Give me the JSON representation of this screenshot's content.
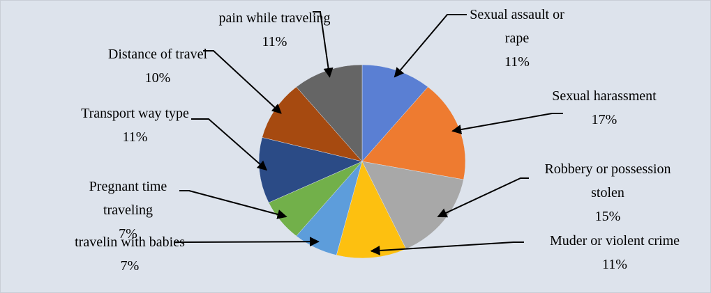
{
  "chart_data": {
    "type": "pie",
    "categories": [
      "Sexual assault or rape",
      "Sexual harassment",
      "Robbery or possession stolen",
      "Muder or violent crime",
      "travelin with babies",
      "Pregnant time traveling",
      "Transport way type",
      "Distance of travel",
      "pain while traveling"
    ],
    "values": [
      11,
      17,
      15,
      11,
      7,
      7,
      11,
      10,
      11
    ],
    "value_labels": [
      "11%",
      "17%",
      "15%",
      "11%",
      "7%",
      "7%",
      "11%",
      "10%",
      "11%"
    ],
    "colors": [
      "#5a7fd3",
      "#ee7b30",
      "#a8a8a8",
      "#fdc010",
      "#5d9ddb",
      "#72b04a",
      "#2b4b86",
      "#a64a10",
      "#656565"
    ]
  }
}
